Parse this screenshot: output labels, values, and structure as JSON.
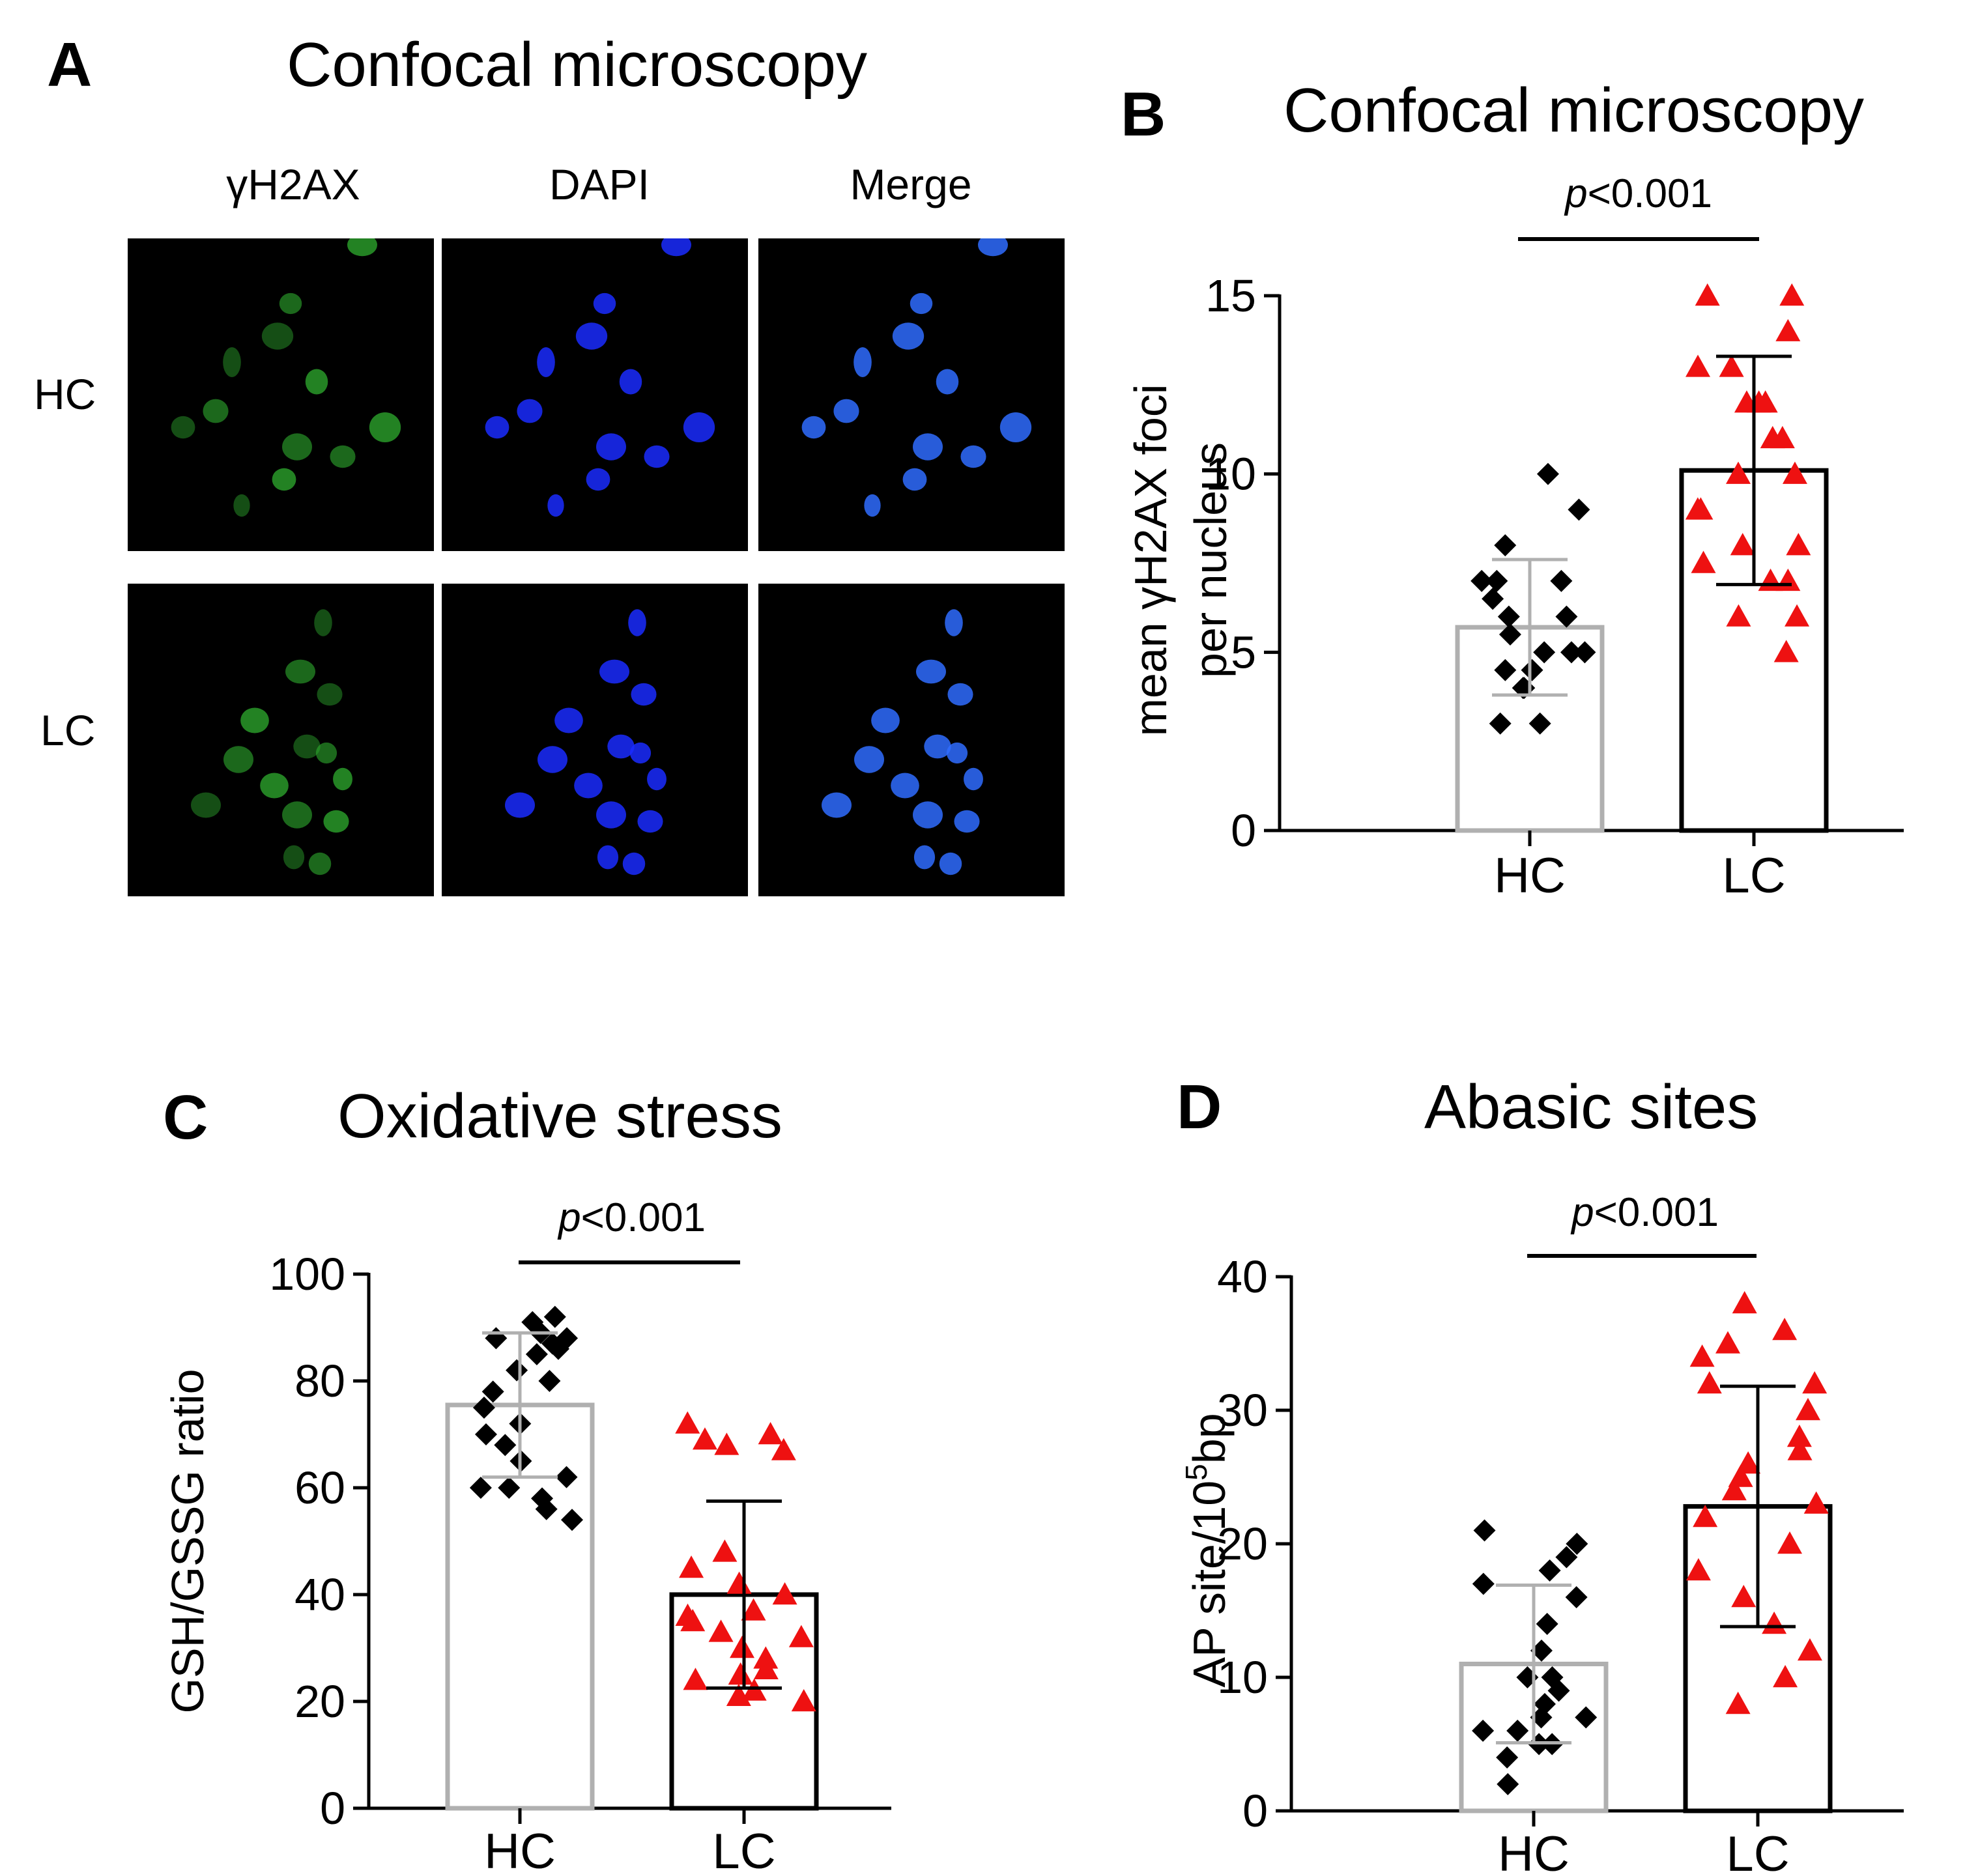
{
  "panel_a": {
    "letter": "A",
    "title": "Confocal microscopy",
    "columns": [
      "γH2AX",
      "DAPI",
      "Merge"
    ],
    "rows": [
      "HC",
      "LC"
    ],
    "channel_colors": {
      "gH2AX": "#2fae2f",
      "DAPI": "#1a2bff",
      "Merge": "#2f6cff"
    }
  },
  "colors": {
    "hc_bar": "#b0b0b0",
    "lc_bar": "#000000",
    "hc_marker": "#000000",
    "lc_marker": "#ee1111"
  },
  "chart_data": [
    {
      "id": "B",
      "type": "bar",
      "letter": "B",
      "title": "Confocal microscopy",
      "ylabel_line1": "mean γH2AX foci",
      "ylabel_line2": "per nucleus",
      "categories": [
        "HC",
        "LC"
      ],
      "values": [
        5.7,
        10.1
      ],
      "sd": [
        1.9,
        3.2
      ],
      "ylim": [
        0,
        15
      ],
      "yticks": [
        "0",
        "5",
        "10",
        "15"
      ],
      "pvalue_p": "p",
      "pvalue_rest": "<0.001",
      "points": {
        "HC": [
          10,
          9,
          8,
          7,
          7,
          7,
          6.5,
          6,
          6,
          5.5,
          5,
          5,
          5,
          4.5,
          4.5,
          4,
          4,
          3,
          3
        ],
        "LC": [
          15,
          15,
          14,
          13,
          13,
          12,
          12,
          12,
          11,
          11,
          10,
          10,
          9,
          9,
          8,
          8,
          7.5,
          7,
          7,
          6,
          6,
          5
        ]
      }
    },
    {
      "id": "C",
      "type": "bar",
      "letter": "C",
      "title": "Oxidative stress",
      "ylabel": "GSH/GSSG ratio",
      "categories": [
        "HC",
        "LC"
      ],
      "values": [
        75.5,
        40
      ],
      "sd": [
        13.5,
        17.5
      ],
      "ylim": [
        0,
        100
      ],
      "yticks": [
        "0",
        "20",
        "40",
        "60",
        "80",
        "100"
      ],
      "pvalue_p": "p",
      "pvalue_rest": "<0.001",
      "points": {
        "HC": [
          92,
          91,
          89,
          88,
          88,
          87,
          86,
          85,
          82,
          80,
          78,
          75,
          72,
          70,
          68,
          65,
          62,
          60,
          60,
          58,
          56,
          54
        ],
        "LC": [
          72,
          70,
          69,
          68,
          67,
          48,
          45,
          42,
          40,
          37,
          36,
          35,
          33,
          32,
          30,
          28,
          26,
          25,
          24,
          22,
          21,
          20
        ]
      }
    },
    {
      "id": "D",
      "type": "bar",
      "letter": "D",
      "title": "Abasic sites",
      "ylabel_prefix": "AP site/10",
      "ylabel_sup": "5",
      "ylabel_suffix": "bp",
      "categories": [
        "HC",
        "LC"
      ],
      "values": [
        11,
        22.8
      ],
      "sd": [
        5.9,
        9
      ],
      "ylim": [
        0,
        40
      ],
      "yticks": [
        "0",
        "10",
        "20",
        "30",
        "40"
      ],
      "pvalue_p": "p",
      "pvalue_rest": "<0.001",
      "points": {
        "HC": [
          21,
          20,
          19,
          18,
          17,
          16,
          14,
          12,
          10,
          10,
          9,
          8,
          7,
          7,
          6,
          6,
          5,
          5,
          4,
          2
        ],
        "LC": [
          38,
          36,
          35,
          34,
          32,
          32,
          30,
          28,
          27,
          26,
          25,
          24,
          23,
          22,
          20,
          18,
          16,
          14,
          12,
          10,
          8
        ]
      }
    }
  ]
}
